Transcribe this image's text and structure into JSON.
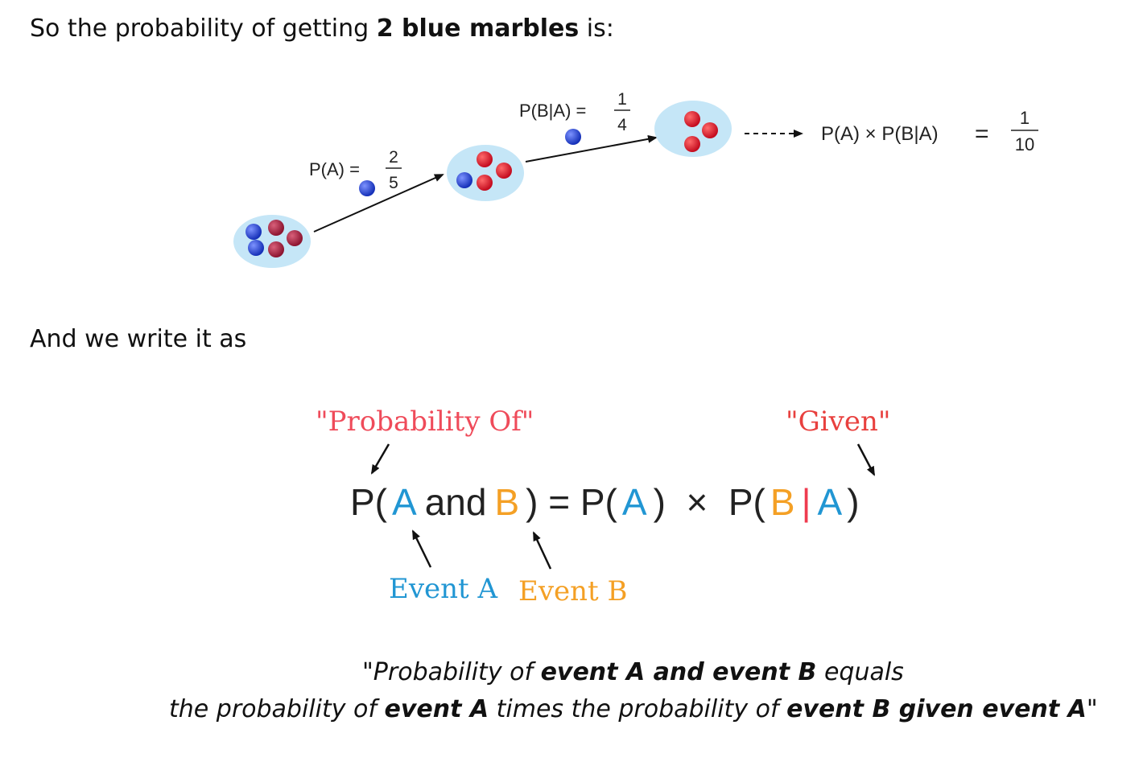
{
  "intro": {
    "prefix": "So the probability of getting ",
    "bold": "2 blue marbles",
    "suffix": " is:"
  },
  "tree": {
    "pa_label": "P(A) =",
    "pa_num": "2",
    "pa_den": "5",
    "pba_label": "P(B|A) =",
    "pba_num": "1",
    "pba_den": "4",
    "result_label": "P(A) × P(B|A)",
    "result_eq": "=",
    "result_num": "1",
    "result_den": "10",
    "colors": {
      "blob": "#c5e6f7",
      "blue": "#1f3fc4",
      "red": "#c8102e",
      "maroon": "#9e1b3a"
    }
  },
  "write_as": "And we write it as",
  "formula": {
    "prob_of_label": "\"Probability Of\"",
    "given_label": "\"Given\"",
    "event_a_label": "Event A",
    "event_b_label": "Event B",
    "p_open_1": "P(",
    "a1": "A",
    "and": "and",
    "b1": "B",
    "close_eq": ") = P(",
    "a2": "A",
    "close_times": ")  ×  P(",
    "b2": "B",
    "bar": "|",
    "a3": "A",
    "close_end": ")",
    "colors": {
      "a": "#2196d3",
      "b": "#f4a025",
      "bar": "#ef3b4f",
      "prob_of": "#ef4b5a",
      "given": "#e8403e"
    }
  },
  "quote": {
    "line1_prefix": "\"Probability of ",
    "line1_bold": "event A and event B",
    "line1_suffix": " equals",
    "line2_prefix": "the probability of ",
    "line2_bold1": "event A",
    "line2_mid": " times the probability of ",
    "line2_bold2": "event B given event A",
    "line2_suffix": "\""
  }
}
